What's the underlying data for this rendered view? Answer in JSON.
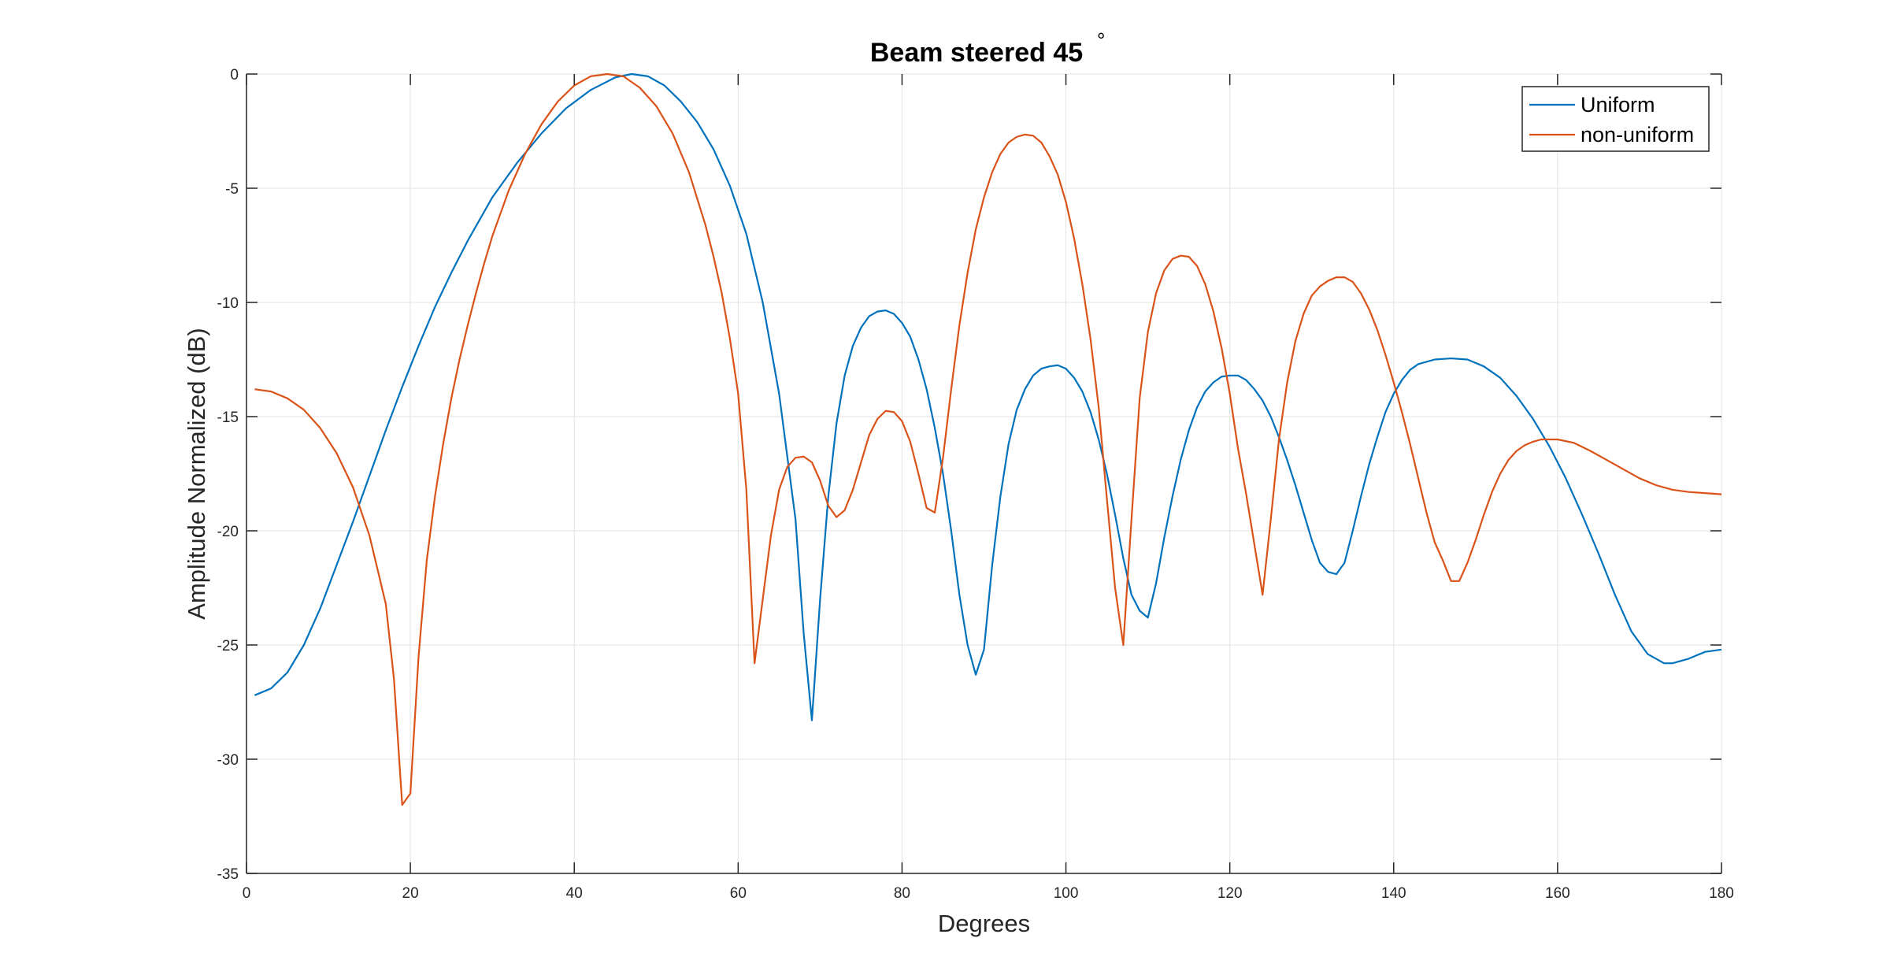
{
  "chart_data": {
    "type": "line",
    "title": "Beam steered 45",
    "title_superscript": "°",
    "xlabel": "Degrees",
    "ylabel": "Amplitude Normalized (dB)",
    "xlim": [
      0,
      180
    ],
    "ylim": [
      -35,
      0
    ],
    "xticks": [
      0,
      20,
      40,
      60,
      80,
      100,
      120,
      140,
      160,
      180
    ],
    "yticks": [
      0,
      -5,
      -10,
      -15,
      -20,
      -25,
      -30,
      -35
    ],
    "xtick_labels": [
      "0",
      "20",
      "40",
      "60",
      "80",
      "100",
      "120",
      "140",
      "160",
      "180"
    ],
    "ytick_labels": [
      "0",
      "-5",
      "-10",
      "-15",
      "-20",
      "-25",
      "-30",
      "-35"
    ],
    "grid": true,
    "legend_position": "top-right",
    "series": [
      {
        "name": "Uniform",
        "color": "#0072BD",
        "points": [
          [
            1,
            -27.2
          ],
          [
            3,
            -26.9
          ],
          [
            5,
            -26.2
          ],
          [
            7,
            -25.0
          ],
          [
            9,
            -23.4
          ],
          [
            11,
            -21.5
          ],
          [
            13,
            -19.6
          ],
          [
            15,
            -17.6
          ],
          [
            17,
            -15.6
          ],
          [
            19,
            -13.7
          ],
          [
            21,
            -11.9
          ],
          [
            23,
            -10.2
          ],
          [
            25,
            -8.7
          ],
          [
            27,
            -7.3
          ],
          [
            30,
            -5.4
          ],
          [
            33,
            -3.9
          ],
          [
            36,
            -2.6
          ],
          [
            39,
            -1.5
          ],
          [
            42,
            -0.7
          ],
          [
            45,
            -0.15
          ],
          [
            47,
            0.0
          ],
          [
            49,
            -0.1
          ],
          [
            51,
            -0.5
          ],
          [
            53,
            -1.2
          ],
          [
            55,
            -2.1
          ],
          [
            57,
            -3.3
          ],
          [
            59,
            -4.9
          ],
          [
            61,
            -7.0
          ],
          [
            63,
            -10.0
          ],
          [
            65,
            -14.0
          ],
          [
            67,
            -19.5
          ],
          [
            68,
            -24.5
          ],
          [
            69,
            -28.3
          ],
          [
            70,
            -23.0
          ],
          [
            71,
            -18.5
          ],
          [
            72,
            -15.3
          ],
          [
            73,
            -13.2
          ],
          [
            74,
            -11.9
          ],
          [
            75,
            -11.1
          ],
          [
            76,
            -10.6
          ],
          [
            77,
            -10.4
          ],
          [
            78,
            -10.35
          ],
          [
            79,
            -10.5
          ],
          [
            80,
            -10.9
          ],
          [
            81,
            -11.5
          ],
          [
            82,
            -12.5
          ],
          [
            83,
            -13.8
          ],
          [
            84,
            -15.5
          ],
          [
            85,
            -17.5
          ],
          [
            86,
            -20.0
          ],
          [
            87,
            -22.8
          ],
          [
            88,
            -25.0
          ],
          [
            89,
            -26.3
          ],
          [
            90,
            -25.2
          ],
          [
            91,
            -21.5
          ],
          [
            92,
            -18.5
          ],
          [
            93,
            -16.2
          ],
          [
            94,
            -14.7
          ],
          [
            95,
            -13.8
          ],
          [
            96,
            -13.2
          ],
          [
            97,
            -12.9
          ],
          [
            98,
            -12.8
          ],
          [
            99,
            -12.75
          ],
          [
            100,
            -12.9
          ],
          [
            101,
            -13.3
          ],
          [
            102,
            -13.9
          ],
          [
            103,
            -14.8
          ],
          [
            104,
            -16.0
          ],
          [
            105,
            -17.5
          ],
          [
            106,
            -19.3
          ],
          [
            107,
            -21.2
          ],
          [
            108,
            -22.8
          ],
          [
            109,
            -23.5
          ],
          [
            110,
            -23.8
          ],
          [
            111,
            -22.3
          ],
          [
            112,
            -20.3
          ],
          [
            113,
            -18.5
          ],
          [
            114,
            -16.9
          ],
          [
            115,
            -15.6
          ],
          [
            116,
            -14.6
          ],
          [
            117,
            -13.9
          ],
          [
            118,
            -13.5
          ],
          [
            119,
            -13.25
          ],
          [
            120,
            -13.2
          ],
          [
            121,
            -13.2
          ],
          [
            122,
            -13.4
          ],
          [
            123,
            -13.8
          ],
          [
            124,
            -14.3
          ],
          [
            125,
            -15.0
          ],
          [
            126,
            -15.9
          ],
          [
            127,
            -16.9
          ],
          [
            128,
            -18.0
          ],
          [
            129,
            -19.2
          ],
          [
            130,
            -20.4
          ],
          [
            131,
            -21.4
          ],
          [
            132,
            -21.8
          ],
          [
            133,
            -21.9
          ],
          [
            134,
            -21.4
          ],
          [
            135,
            -20.0
          ],
          [
            136,
            -18.5
          ],
          [
            137,
            -17.1
          ],
          [
            138,
            -15.9
          ],
          [
            139,
            -14.8
          ],
          [
            140,
            -14.0
          ],
          [
            141,
            -13.4
          ],
          [
            142,
            -12.95
          ],
          [
            143,
            -12.7
          ],
          [
            145,
            -12.5
          ],
          [
            147,
            -12.45
          ],
          [
            149,
            -12.5
          ],
          [
            151,
            -12.8
          ],
          [
            153,
            -13.3
          ],
          [
            155,
            -14.1
          ],
          [
            157,
            -15.1
          ],
          [
            159,
            -16.3
          ],
          [
            161,
            -17.7
          ],
          [
            163,
            -19.3
          ],
          [
            165,
            -21.0
          ],
          [
            167,
            -22.8
          ],
          [
            169,
            -24.4
          ],
          [
            171,
            -25.4
          ],
          [
            173,
            -25.8
          ],
          [
            174,
            -25.8
          ],
          [
            176,
            -25.6
          ],
          [
            178,
            -25.3
          ],
          [
            180,
            -25.2
          ]
        ]
      },
      {
        "name": "non-uniform",
        "color": "#D95319",
        "points": [
          [
            1,
            -13.8
          ],
          [
            3,
            -13.9
          ],
          [
            5,
            -14.2
          ],
          [
            7,
            -14.7
          ],
          [
            9,
            -15.5
          ],
          [
            11,
            -16.6
          ],
          [
            13,
            -18.1
          ],
          [
            15,
            -20.2
          ],
          [
            17,
            -23.2
          ],
          [
            18,
            -26.5
          ],
          [
            19,
            -32.0
          ],
          [
            20,
            -31.5
          ],
          [
            21,
            -25.5
          ],
          [
            22,
            -21.3
          ],
          [
            23,
            -18.5
          ],
          [
            24,
            -16.2
          ],
          [
            25,
            -14.2
          ],
          [
            26,
            -12.5
          ],
          [
            27,
            -11.0
          ],
          [
            28,
            -9.6
          ],
          [
            29,
            -8.3
          ],
          [
            30,
            -7.1
          ],
          [
            32,
            -5.1
          ],
          [
            34,
            -3.5
          ],
          [
            36,
            -2.2
          ],
          [
            38,
            -1.2
          ],
          [
            40,
            -0.5
          ],
          [
            42,
            -0.1
          ],
          [
            44,
            0.0
          ],
          [
            46,
            -0.1
          ],
          [
            48,
            -0.6
          ],
          [
            50,
            -1.4
          ],
          [
            52,
            -2.6
          ],
          [
            54,
            -4.3
          ],
          [
            56,
            -6.6
          ],
          [
            57,
            -8.0
          ],
          [
            58,
            -9.6
          ],
          [
            59,
            -11.6
          ],
          [
            60,
            -14.0
          ],
          [
            61,
            -18.2
          ],
          [
            62,
            -25.8
          ],
          [
            63,
            -23.0
          ],
          [
            64,
            -20.2
          ],
          [
            65,
            -18.2
          ],
          [
            66,
            -17.2
          ],
          [
            67,
            -16.8
          ],
          [
            68,
            -16.75
          ],
          [
            69,
            -17.0
          ],
          [
            70,
            -17.8
          ],
          [
            71,
            -18.9
          ],
          [
            72,
            -19.4
          ],
          [
            73,
            -19.1
          ],
          [
            74,
            -18.2
          ],
          [
            75,
            -17.0
          ],
          [
            76,
            -15.8
          ],
          [
            77,
            -15.1
          ],
          [
            78,
            -14.75
          ],
          [
            79,
            -14.8
          ],
          [
            80,
            -15.2
          ],
          [
            81,
            -16.1
          ],
          [
            82,
            -17.5
          ],
          [
            83,
            -19.0
          ],
          [
            84,
            -19.2
          ],
          [
            85,
            -16.8
          ],
          [
            86,
            -13.8
          ],
          [
            87,
            -11.0
          ],
          [
            88,
            -8.7
          ],
          [
            89,
            -6.8
          ],
          [
            90,
            -5.4
          ],
          [
            91,
            -4.3
          ],
          [
            92,
            -3.5
          ],
          [
            93,
            -3.0
          ],
          [
            94,
            -2.75
          ],
          [
            95,
            -2.65
          ],
          [
            96,
            -2.7
          ],
          [
            97,
            -3.0
          ],
          [
            98,
            -3.6
          ],
          [
            99,
            -4.4
          ],
          [
            100,
            -5.6
          ],
          [
            101,
            -7.2
          ],
          [
            102,
            -9.2
          ],
          [
            103,
            -11.6
          ],
          [
            104,
            -14.6
          ],
          [
            105,
            -18.6
          ],
          [
            106,
            -22.5
          ],
          [
            107,
            -25.0
          ],
          [
            108,
            -19.5
          ],
          [
            109,
            -14.2
          ],
          [
            110,
            -11.3
          ],
          [
            111,
            -9.6
          ],
          [
            112,
            -8.6
          ],
          [
            113,
            -8.1
          ],
          [
            114,
            -7.95
          ],
          [
            115,
            -8.0
          ],
          [
            116,
            -8.4
          ],
          [
            117,
            -9.2
          ],
          [
            118,
            -10.4
          ],
          [
            119,
            -12.0
          ],
          [
            120,
            -14.0
          ],
          [
            121,
            -16.4
          ],
          [
            122,
            -18.4
          ],
          [
            123,
            -20.6
          ],
          [
            124,
            -22.8
          ],
          [
            125,
            -19.5
          ],
          [
            126,
            -16.0
          ],
          [
            127,
            -13.5
          ],
          [
            128,
            -11.7
          ],
          [
            129,
            -10.5
          ],
          [
            130,
            -9.7
          ],
          [
            131,
            -9.3
          ],
          [
            132,
            -9.05
          ],
          [
            133,
            -8.9
          ],
          [
            134,
            -8.9
          ],
          [
            135,
            -9.1
          ],
          [
            136,
            -9.6
          ],
          [
            137,
            -10.3
          ],
          [
            138,
            -11.2
          ],
          [
            139,
            -12.3
          ],
          [
            140,
            -13.5
          ],
          [
            141,
            -14.8
          ],
          [
            142,
            -16.2
          ],
          [
            143,
            -17.7
          ],
          [
            144,
            -19.2
          ],
          [
            145,
            -20.5
          ],
          [
            146,
            -21.3
          ],
          [
            147,
            -22.2
          ],
          [
            148,
            -22.2
          ],
          [
            149,
            -21.4
          ],
          [
            150,
            -20.4
          ],
          [
            151,
            -19.3
          ],
          [
            152,
            -18.3
          ],
          [
            153,
            -17.5
          ],
          [
            154,
            -16.9
          ],
          [
            155,
            -16.5
          ],
          [
            156,
            -16.25
          ],
          [
            157,
            -16.1
          ],
          [
            158,
            -16.0
          ],
          [
            159,
            -16.0
          ],
          [
            160,
            -16.0
          ],
          [
            162,
            -16.15
          ],
          [
            164,
            -16.5
          ],
          [
            166,
            -16.9
          ],
          [
            168,
            -17.3
          ],
          [
            170,
            -17.7
          ],
          [
            172,
            -18.0
          ],
          [
            174,
            -18.2
          ],
          [
            176,
            -18.3
          ],
          [
            178,
            -18.35
          ],
          [
            180,
            -18.4
          ]
        ]
      }
    ]
  }
}
